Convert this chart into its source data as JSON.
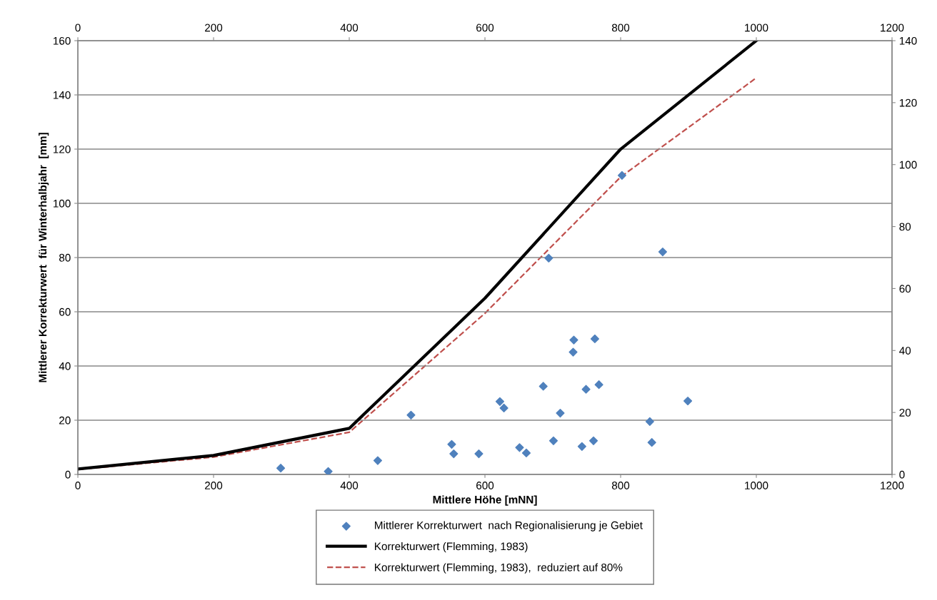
{
  "chart_data": {
    "type": "scatter",
    "xlabel": "Mittlere Höhe [mNN]",
    "ylabel": "Mittlerer Korrekturwert  für Winterhalbjahr  [mm]",
    "xlim": [
      0,
      1200
    ],
    "xticks": [
      0,
      200,
      400,
      600,
      800,
      1000,
      1200
    ],
    "x2lim": [
      0,
      1200
    ],
    "x2ticks": [
      0,
      200,
      400,
      600,
      800,
      1000,
      1200
    ],
    "ylim": [
      0,
      160
    ],
    "yticks": [
      0,
      20,
      40,
      60,
      80,
      100,
      120,
      140,
      160
    ],
    "y2lim": [
      0,
      140
    ],
    "y2ticks": [
      0,
      20,
      40,
      60,
      80,
      100,
      120,
      140
    ],
    "grid": "y",
    "legend": "bottom",
    "series": [
      {
        "name": "Mittlerer Korrekturwert  nach Regionalisierung je Gebiet",
        "marker": "diamond",
        "color": "#4f81bd",
        "x": [
          299,
          369,
          442,
          491,
          551,
          554,
          591,
          622,
          628,
          651,
          661,
          686,
          694,
          701,
          711,
          730,
          731,
          743,
          749,
          760,
          762,
          768,
          802,
          843,
          846,
          862,
          899
        ],
        "values": [
          2.3,
          1.1,
          5.1,
          21.9,
          11.1,
          7.6,
          7.6,
          26.9,
          24.5,
          9.9,
          7.9,
          32.5,
          79.8,
          12.4,
          22.6,
          45.1,
          49.6,
          10.3,
          31.4,
          12.4,
          50.0,
          33.1,
          110.3,
          19.5,
          11.8,
          82.1,
          27.1
        ]
      },
      {
        "name": "Korrekturwert (Flemming, 1983)",
        "type": "line",
        "line_style": "solid",
        "marker": "none",
        "color": "#000000",
        "x": [
          0,
          200,
          400,
          600,
          800,
          1000
        ],
        "values": [
          2,
          7,
          17,
          65,
          120,
          160
        ]
      },
      {
        "name": "Korrekturwert (Flemming, 1983),  reduziert auf 80%",
        "type": "line",
        "line_style": "dashed",
        "marker": "none",
        "color": "#c0504d",
        "axis": "y2",
        "x": [
          0,
          200,
          400,
          600,
          800,
          1000
        ],
        "values": [
          1.6,
          5.6,
          13.6,
          52,
          96,
          128
        ]
      }
    ]
  }
}
